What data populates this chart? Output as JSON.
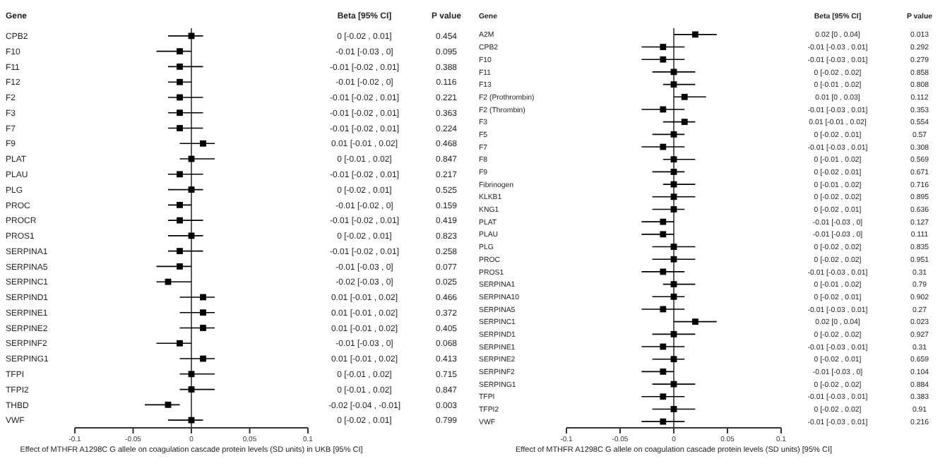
{
  "chart_data": [
    {
      "type": "scatter",
      "orientation": "horizontal",
      "ylabel": "Gene",
      "xlabel": "Effect of MTHFR A1298C G allele on coagulation cascade protein levels (SD units) in UKB [95% CI]",
      "categories": [
        "CPB2",
        "F10",
        "F11",
        "F12",
        "F2",
        "F3",
        "F7",
        "F9",
        "PLAT",
        "PLAU",
        "PLG",
        "PROC",
        "PROCR",
        "PROS1",
        "SERPINA1",
        "SERPINA5",
        "SERPINC1",
        "SERPIND1",
        "SERPINE1",
        "SERPINE2",
        "SERPINF2",
        "SERPING1",
        "TFPI",
        "TFPI2",
        "THBD",
        "VWF"
      ],
      "series": [
        {
          "color": "#000000",
          "values": [
            0,
            -0.01,
            -0.01,
            -0.01,
            -0.01,
            -0.01,
            -0.01,
            0.01,
            0,
            -0.01,
            0,
            -0.01,
            -0.01,
            0,
            -0.01,
            -0.01,
            -0.02,
            0.01,
            0.01,
            0.01,
            -0.01,
            0.01,
            0,
            0,
            -0.02,
            0
          ],
          "errors": [
            [
              -0.02,
              0.01
            ],
            [
              -0.03,
              0
            ],
            [
              -0.02,
              0.01
            ],
            [
              -0.02,
              0
            ],
            [
              -0.02,
              0.01
            ],
            [
              -0.02,
              0.01
            ],
            [
              -0.02,
              0.01
            ],
            [
              -0.01,
              0.02
            ],
            [
              -0.01,
              0.02
            ],
            [
              -0.02,
              0.01
            ],
            [
              -0.02,
              0.01
            ],
            [
              -0.02,
              0
            ],
            [
              -0.02,
              0.01
            ],
            [
              -0.02,
              0.01
            ],
            [
              -0.02,
              0.01
            ],
            [
              -0.03,
              0
            ],
            [
              -0.03,
              0
            ],
            [
              -0.01,
              0.02
            ],
            [
              -0.01,
              0.02
            ],
            [
              -0.01,
              0.02
            ],
            [
              -0.03,
              0
            ],
            [
              -0.01,
              0.02
            ],
            [
              -0.01,
              0.02
            ],
            [
              -0.01,
              0.02
            ],
            [
              -0.04,
              -0.01
            ],
            [
              -0.02,
              0.01
            ]
          ]
        }
      ],
      "xlim": [
        -0.1,
        0.1
      ],
      "xticks": [
        -0.1,
        -0.05,
        0,
        0.05,
        0.1
      ],
      "marker": "square",
      "ref_lines": [
        {
          "axis": "x",
          "value": 0
        }
      ],
      "annotations": [
        "Beta [95% CI]",
        "P value",
        "0 [-0.02 , 0.01]",
        "-0.01 [-0.03 , 0]",
        "-0.01 [-0.02 , 0.01]",
        "-0.01 [-0.02 , 0]",
        "-0.01 [-0.02 , 0.01]",
        "-0.01 [-0.02 , 0.01]",
        "-0.01 [-0.02 , 0.01]",
        "0.01 [-0.01 , 0.02]",
        "0 [-0.01 , 0.02]",
        "-0.01 [-0.02 , 0.01]",
        "0 [-0.02 , 0.01]",
        "-0.01 [-0.02 , 0]",
        "-0.01 [-0.02 , 0.01]",
        "0 [-0.02 , 0.01]",
        "-0.01 [-0.02 , 0.01]",
        "-0.01 [-0.03 , 0]",
        "-0.02 [-0.03 , 0]",
        "0.01 [-0.01 , 0.02]",
        "0.01 [-0.01 , 0.02]",
        "0.01 [-0.01 , 0.02]",
        "-0.01 [-0.03 , 0]",
        "0.01 [-0.01 , 0.02]",
        "0 [-0.01 , 0.02]",
        "0 [-0.01 , 0.02]",
        "-0.02 [-0.04 , -0.01]",
        "0 [-0.02 , 0.01]",
        "0.454",
        "0.095",
        "0.388",
        "0.116",
        "0.221",
        "0.363",
        "0.224",
        "0.468",
        "0.847",
        "0.217",
        "0.525",
        "0.159",
        "0.419",
        "0.823",
        "0.258",
        "0.077",
        "0.025",
        "0.466",
        "0.372",
        "0.405",
        "0.068",
        "0.413",
        "0.715",
        "0.847",
        "0.003",
        "0.799"
      ]
    },
    {
      "type": "scatter",
      "orientation": "horizontal",
      "ylabel": "Gene",
      "xlabel": "Effect of MTHFR A1298C G allele on coagulation cascade protein levels (SD units) [95% CI]",
      "categories": [
        "A2M",
        "CPB2",
        "F10",
        "F11",
        "F13",
        "F2 (Prothrombin)",
        "F2 (Thrombin)",
        "F3",
        "F5",
        "F7",
        "F8",
        "F9",
        "Fibrinogen",
        "KLKB1",
        "KNG1",
        "PLAT",
        "PLAU",
        "PLG",
        "PROC",
        "PROS1",
        "SERPINA1",
        "SERPINA10",
        "SERPINA5",
        "SERPINC1",
        "SERPIND1",
        "SERPINE1",
        "SERPINE2",
        "SERPINF2",
        "SERPING1",
        "TFPI",
        "TFPI2",
        "VWF"
      ],
      "series": [
        {
          "color": "#000000",
          "values": [
            0.02,
            -0.01,
            -0.01,
            0,
            0,
            0.01,
            -0.01,
            0.01,
            0,
            -0.01,
            0,
            0,
            0,
            0,
            0,
            -0.01,
            -0.01,
            0,
            0,
            -0.01,
            0,
            0,
            -0.01,
            0.02,
            0,
            -0.01,
            0,
            -0.01,
            0,
            -0.01,
            0,
            -0.01
          ],
          "errors": [
            [
              0,
              0.04
            ],
            [
              -0.03,
              0.01
            ],
            [
              -0.03,
              0.01
            ],
            [
              -0.02,
              0.02
            ],
            [
              -0.01,
              0.02
            ],
            [
              0,
              0.03
            ],
            [
              -0.03,
              0.01
            ],
            [
              -0.01,
              0.02
            ],
            [
              -0.02,
              0.01
            ],
            [
              -0.03,
              0.01
            ],
            [
              -0.01,
              0.02
            ],
            [
              -0.02,
              0.01
            ],
            [
              -0.01,
              0.02
            ],
            [
              -0.02,
              0.02
            ],
            [
              -0.02,
              0.01
            ],
            [
              -0.03,
              0
            ],
            [
              -0.03,
              0
            ],
            [
              -0.02,
              0.02
            ],
            [
              -0.02,
              0.02
            ],
            [
              -0.03,
              0.01
            ],
            [
              -0.01,
              0.02
            ],
            [
              -0.02,
              0.01
            ],
            [
              -0.03,
              0.01
            ],
            [
              0,
              0.04
            ],
            [
              -0.02,
              0.02
            ],
            [
              -0.03,
              0.01
            ],
            [
              -0.02,
              0.01
            ],
            [
              -0.03,
              0
            ],
            [
              -0.02,
              0.02
            ],
            [
              -0.03,
              0.01
            ],
            [
              -0.02,
              0.02
            ],
            [
              -0.03,
              0.01
            ]
          ]
        }
      ],
      "xlim": [
        -0.1,
        0.1
      ],
      "xticks": [
        -0.1,
        -0.05,
        0,
        0.05,
        0.1
      ],
      "marker": "square",
      "ref_lines": [
        {
          "axis": "x",
          "value": 0
        }
      ],
      "annotations": [
        "Beta [95% CI]",
        "P value",
        "0.02 [0 , 0.04]",
        "-0.01 [-0.03 , 0.01]",
        "-0.01 [-0.03 , 0.01]",
        "0 [-0.02 , 0.02]",
        "0 [-0.01 , 0.02]",
        "0.01 [0 , 0.03]",
        "-0.01 [-0.03 , 0.01]",
        "0.01 [-0.01 , 0.02]",
        "0 [-0.02 , 0.01]",
        "-0.01 [-0.03 , 0.01]",
        "0 [-0.01 , 0.02]",
        "0 [-0.02 , 0.01]",
        "0 [-0.01 , 0.02]",
        "0 [-0.02 , 0.02]",
        "0 [-0.02 , 0.01]",
        "-0.01 [-0.03 , 0]",
        "-0.01 [-0.03 , 0]",
        "0 [-0.02 , 0.02]",
        "0 [-0.02 , 0.02]",
        "-0.01 [-0.03 , 0.01]",
        "0 [-0.01 , 0.02]",
        "0 [-0.02 , 0.01]",
        "-0.01 [-0.03 , 0.01]",
        "0.02 [0 , 0.04]",
        "0 [-0.02 , 0.02]",
        "-0.01 [-0.03 , 0.01]",
        "0 [-0.02 , 0.01]",
        "-0.01 [-0.03 , 0]",
        "0 [-0.02 , 0.02]",
        "-0.01 [-0.03 , 0.01]",
        "0 [-0.02 , 0.02]",
        "-0.01 [-0.03 , 0.01]",
        "0.013",
        "0.292",
        "0.279",
        "0.858",
        "0.808",
        "0.112",
        "0.353",
        "0.554",
        "0.57",
        "0.308",
        "0.569",
        "0.671",
        "0.716",
        "0.895",
        "0.636",
        "0.127",
        "0.111",
        "0.835",
        "0.951",
        "0.31",
        "0.79",
        "0.902",
        "0.27",
        "0.023",
        "0.927",
        "0.31",
        "0.659",
        "0.104",
        "0.884",
        "0.383",
        "0.91",
        "0.216"
      ]
    }
  ]
}
